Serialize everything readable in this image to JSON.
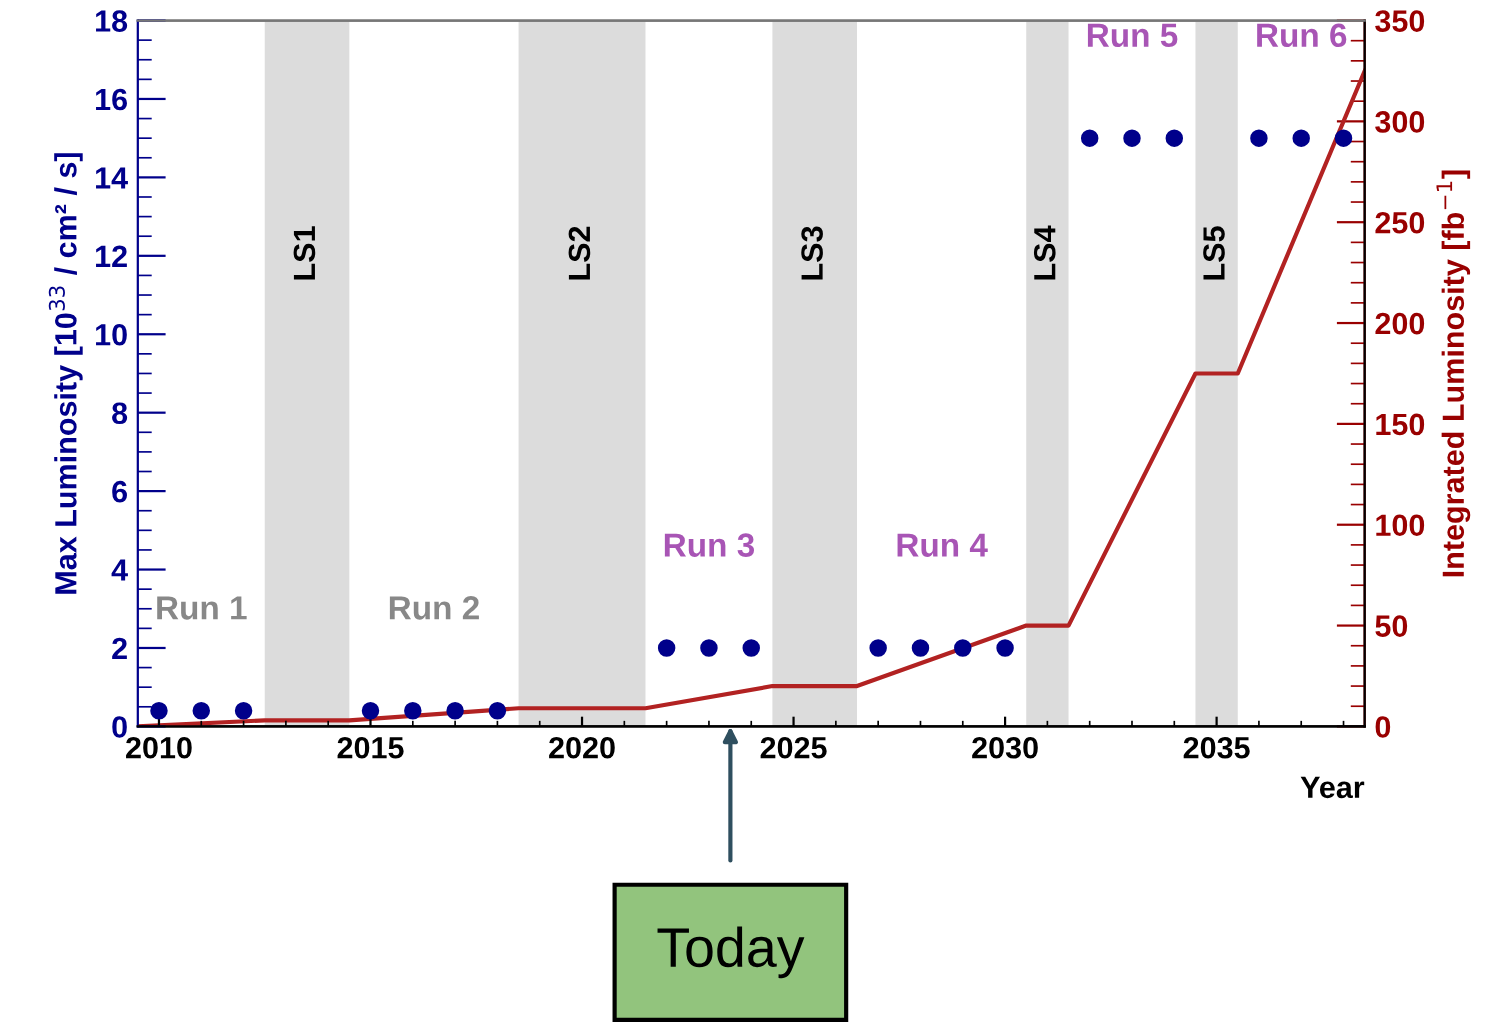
{
  "chart_data": {
    "type": "scatter",
    "xlabel": "Year",
    "ylabel": "Max Luminosity [10$^{33}$ / cm² / s]",
    "y2label": "Integrated Luminosity [fb$^{−1}$]",
    "xlim": [
      2009.5,
      2038.5
    ],
    "xticks": [
      2010,
      2015,
      2020,
      2025,
      2030,
      2035
    ],
    "ylim": [
      0,
      18
    ],
    "yticks": [
      0,
      2,
      4,
      6,
      8,
      10,
      12,
      14,
      16,
      18
    ],
    "y2lim": [
      0,
      350
    ],
    "y2ticks": [
      0,
      50,
      100,
      150,
      200,
      250,
      300,
      350
    ],
    "grid": false,
    "series": [
      {
        "marker": "circle",
        "color": "#00008b",
        "x": [
          2010,
          2011,
          2012,
          2015,
          2016,
          2017,
          2018,
          2022,
          2023,
          2024,
          2027,
          2028,
          2029,
          2030,
          2032,
          2033,
          2034,
          2036,
          2037,
          2038
        ],
        "values": [
          0.4,
          0.4,
          0.4,
          0.4,
          0.4,
          0.4,
          0.4,
          2,
          2,
          2,
          2,
          2,
          2,
          2,
          15,
          15,
          15,
          15,
          15,
          15
        ]
      },
      {
        "type": "line",
        "marker": "none",
        "axis": "y2",
        "color": "#b22222",
        "x": [
          2009.5,
          2012.5,
          2014.5,
          2018.5,
          2021.5,
          2024.5,
          2026.5,
          2030.5,
          2031.5,
          2034.5,
          2035.5,
          2038.5
        ],
        "values": [
          0,
          3,
          3,
          9,
          9,
          20,
          20,
          50,
          50,
          175,
          175,
          325
        ]
      }
    ],
    "bands": [
      {
        "axis": "x",
        "from": 2012.5,
        "to": 2014.5,
        "label": "LS1",
        "color": "#dcdcdc"
      },
      {
        "axis": "x",
        "from": 2018.5,
        "to": 2021.5,
        "label": "LS2",
        "color": "#dcdcdc"
      },
      {
        "axis": "x",
        "from": 2024.5,
        "to": 2026.5,
        "label": "LS3",
        "color": "#dcdcdc"
      },
      {
        "axis": "x",
        "from": 2030.5,
        "to": 2031.5,
        "label": "LS4",
        "color": "#dcdcdc"
      },
      {
        "axis": "x",
        "from": 2034.5,
        "to": 2035.5,
        "label": "LS5",
        "color": "#dcdcdc"
      }
    ],
    "annotations": [
      "Run 1",
      "Run 2",
      "Run 3",
      "Run 4",
      "Run 5",
      "Run 6",
      "Today"
    ]
  }
}
